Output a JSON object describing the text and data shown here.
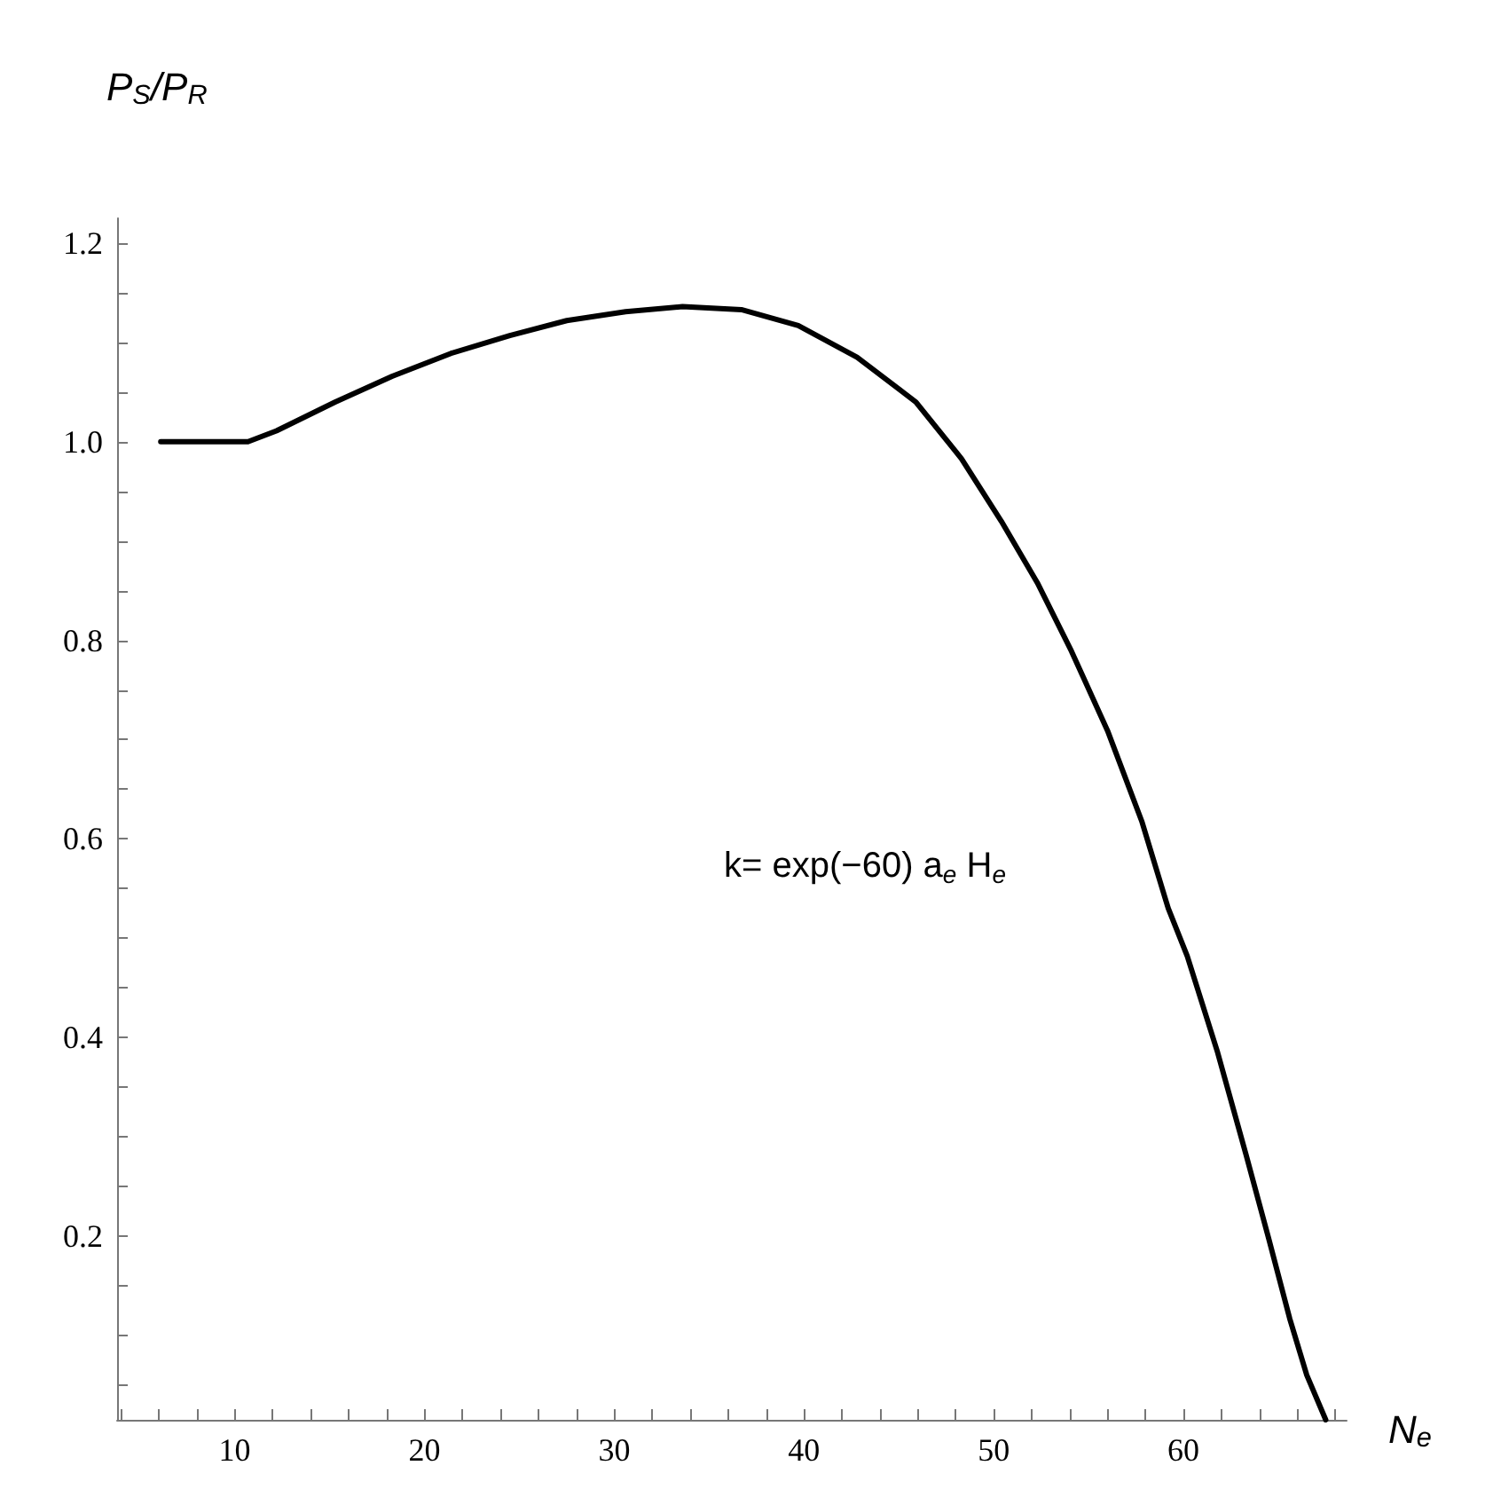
{
  "chart_data": {
    "type": "line",
    "xlabel": "N$_{e}$",
    "ylabel": "P$_{S}$/P$_{R}$",
    "annotations": [
      "k= exp(−60) a$_{e}$ H$_{e}$"
    ],
    "x": [
      6.1,
      10.7,
      12.2,
      15.3,
      18.3,
      21.4,
      24.5,
      27.5,
      30.6,
      33.6,
      36.7,
      39.7,
      42.8,
      45.9,
      48.3,
      50.4,
      52.3,
      54.1,
      56.0,
      57.8,
      59.2,
      60.2,
      61.8,
      63.3,
      64.5,
      65.6,
      66.5,
      67.5
    ],
    "series": [
      {
        "color": "#000000",
        "values": [
          1.0,
          1.0,
          1.011,
          1.04,
          1.066,
          1.089,
          1.107,
          1.122,
          1.131,
          1.136,
          1.133,
          1.117,
          1.085,
          1.04,
          0.983,
          0.92,
          0.858,
          0.789,
          0.709,
          0.618,
          0.53,
          0.482,
          0.385,
          0.282,
          0.197,
          0.117,
          0.06,
          0.015
        ]
      }
    ],
    "xlim": [
      3.8,
      68.6
    ],
    "ylim": [
      0.015,
      1.225
    ],
    "xticks": [
      {
        "value": 4,
        "label": null
      },
      {
        "value": 6,
        "label": null
      },
      {
        "value": 8,
        "label": null
      },
      10,
      {
        "value": 12,
        "label": null
      },
      {
        "value": 14,
        "label": null
      },
      {
        "value": 16,
        "label": null
      },
      {
        "value": 18,
        "label": null
      },
      20,
      {
        "value": 22,
        "label": null
      },
      {
        "value": 24,
        "label": null
      },
      {
        "value": 26,
        "label": null
      },
      {
        "value": 28,
        "label": null
      },
      30,
      {
        "value": 32,
        "label": null
      },
      {
        "value": 34,
        "label": null
      },
      {
        "value": 36,
        "label": null
      },
      {
        "value": 38,
        "label": null
      },
      40,
      {
        "value": 42,
        "label": null
      },
      {
        "value": 44,
        "label": null
      },
      {
        "value": 46,
        "label": null
      },
      {
        "value": 48,
        "label": null
      },
      50,
      {
        "value": 52,
        "label": null
      },
      {
        "value": 54,
        "label": null
      },
      {
        "value": 56,
        "label": null
      },
      {
        "value": 58,
        "label": null
      },
      60,
      {
        "value": 62,
        "label": null
      },
      {
        "value": 64,
        "label": null
      },
      {
        "value": 66,
        "label": null
      },
      {
        "value": 68,
        "label": null
      }
    ],
    "yticks": [
      {
        "value": 0.05,
        "label": null
      },
      {
        "value": 0.1,
        "label": null
      },
      {
        "value": 0.15,
        "label": null
      },
      0.2,
      {
        "value": 0.25,
        "label": null
      },
      {
        "value": 0.3,
        "label": null
      },
      {
        "value": 0.35,
        "label": null
      },
      0.4,
      {
        "value": 0.45,
        "label": null
      },
      {
        "value": 0.5,
        "label": null
      },
      {
        "value": 0.55,
        "label": null
      },
      0.6,
      {
        "value": 0.65,
        "label": null
      },
      {
        "value": 0.7,
        "label": null
      },
      {
        "value": 0.75,
        "label": null
      },
      0.8,
      {
        "value": 0.85,
        "label": null
      },
      {
        "value": 0.9,
        "label": null
      },
      {
        "value": 0.95,
        "label": null
      },
      {
        "value": 1,
        "label": "1.0"
      },
      {
        "value": 1.05,
        "label": null
      },
      {
        "value": 1.1,
        "label": null
      },
      {
        "value": 1.15,
        "label": null
      },
      1.2
    ],
    "marker": "none",
    "line_style": "solid"
  }
}
